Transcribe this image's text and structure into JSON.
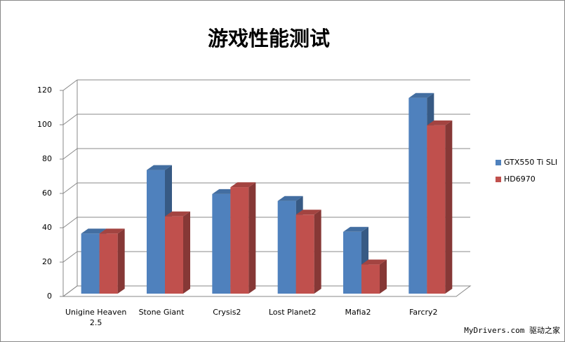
{
  "chart_data": {
    "type": "bar3d",
    "title": "游戏性能测试",
    "categories": [
      "Unigine Heaven 2.5",
      "Stone Giant",
      "Crysis2",
      "Lost Planet2",
      "Mafia2",
      "Farcry2"
    ],
    "series": [
      {
        "name": "GTX550 Ti SLI",
        "color": "#4f81bd",
        "values": [
          35,
          72,
          58,
          54,
          36,
          114
        ]
      },
      {
        "name": "HD6970",
        "color": "#c0504d",
        "values": [
          35,
          45,
          62,
          46,
          17,
          98
        ]
      }
    ],
    "ylim": [
      0,
      120
    ],
    "yticks": [
      0,
      20,
      40,
      60,
      80,
      100,
      120
    ],
    "grid": true,
    "legend": "right",
    "watermark": "MyDrivers.com 驱动之家"
  }
}
